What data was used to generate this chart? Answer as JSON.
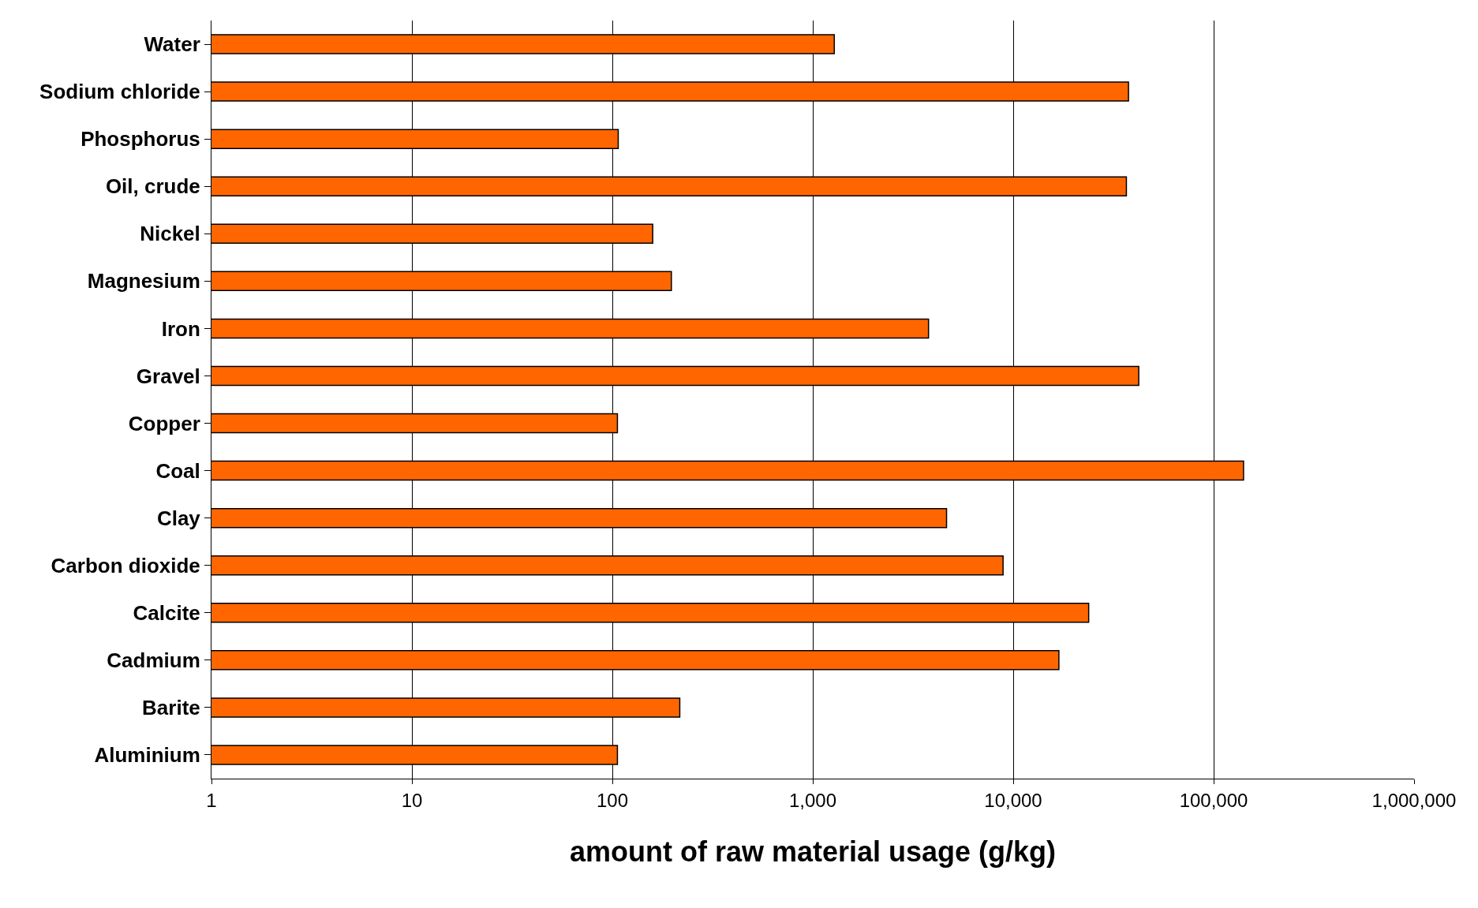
{
  "chart_data": {
    "type": "bar",
    "orientation": "horizontal",
    "log": "x",
    "xlabel": "amount of raw material usage (g/kg)",
    "categories": [
      "Water",
      "Sodium chloride",
      "Phosphorus",
      "Oil, crude",
      "Nickel",
      "Magnesium",
      "Iron",
      "Gravel",
      "Copper",
      "Coal",
      "Clay",
      "Carbon dioxide",
      "Calcite",
      "Cadmium",
      "Barite",
      "Aluminium"
    ],
    "values": [
      1280,
      37600,
      107,
      36700,
      159,
      197,
      3780,
      42300,
      106,
      141000,
      4650,
      8900,
      23800,
      16900,
      217,
      106
    ],
    "color": "#ff6600",
    "xlim": [
      1,
      1000000
    ],
    "xticks": [
      1,
      10,
      100,
      {
        "value": 1000,
        "label": "1,000"
      },
      {
        "value": 10000,
        "label": "10,000"
      },
      {
        "value": 100000,
        "label": "100,000"
      },
      {
        "value": 1000000,
        "label": "1,000,000"
      }
    ],
    "grid": "x",
    "legend": false
  }
}
